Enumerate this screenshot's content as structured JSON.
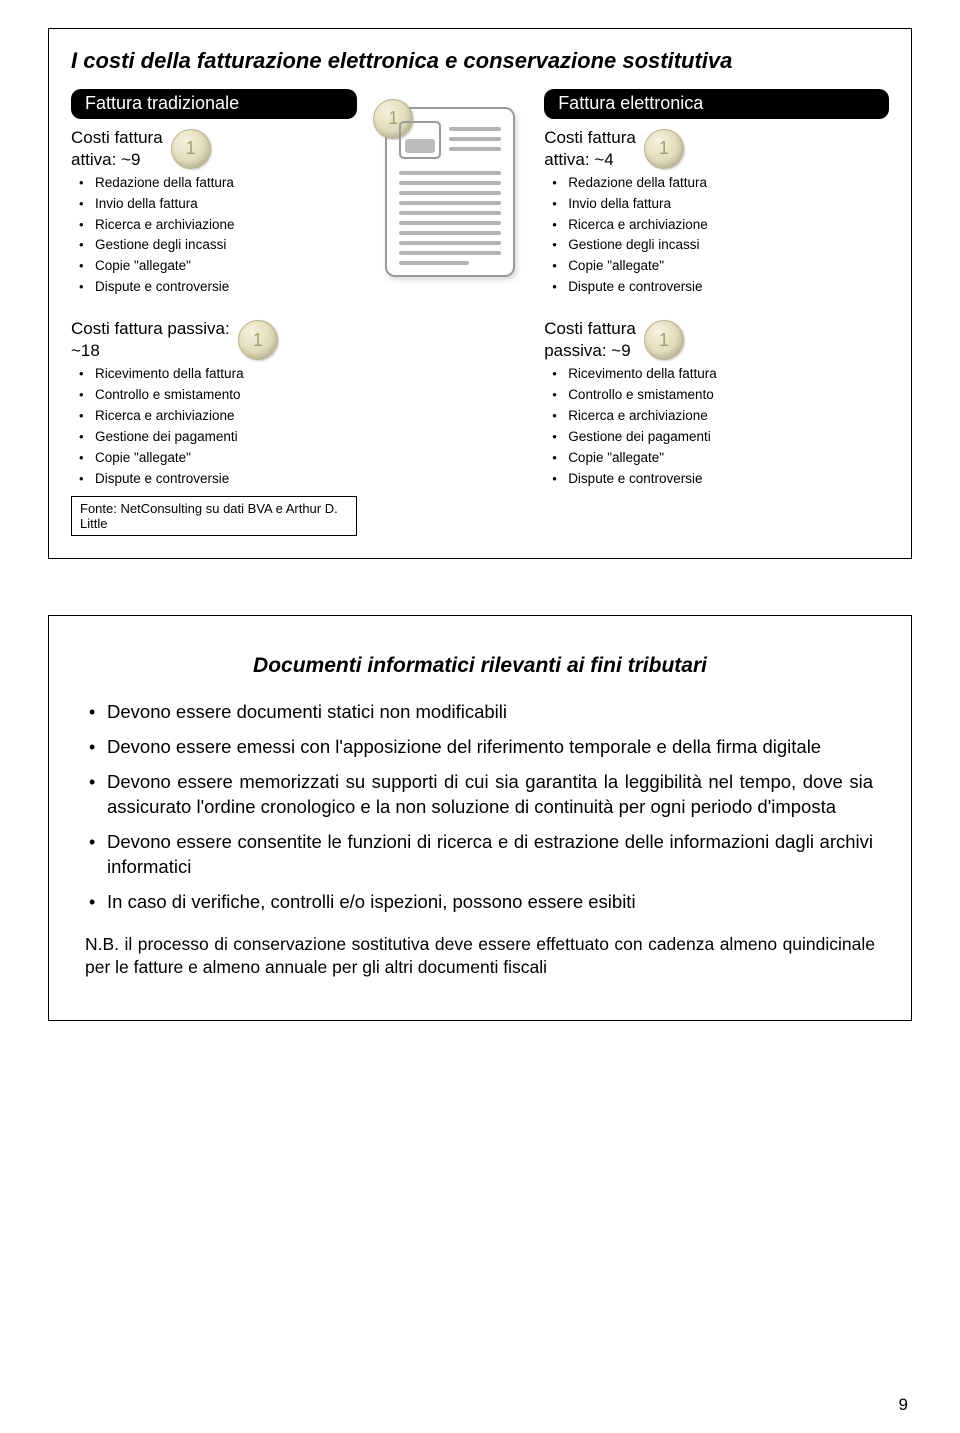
{
  "slide1": {
    "title": "I costi della fatturazione elettronica e conservazione sostitutiva",
    "col_left": {
      "pill": "Fattura tradizionale",
      "block_a": {
        "head": "Costi fattura\nattiva: ~9",
        "items": [
          "Redazione della fattura",
          "Invio della fattura",
          "Ricerca e archiviazione",
          "Gestione degli incassi",
          "Copie \"allegate\"",
          "Dispute e controversie"
        ]
      },
      "block_b": {
        "head": "Costi fattura passiva:\n~18",
        "items": [
          "Ricevimento della fattura",
          "Controllo e smistamento",
          "Ricerca e archiviazione",
          "Gestione dei pagamenti",
          "Copie \"allegate\"",
          "Dispute e controversie"
        ]
      }
    },
    "col_right": {
      "pill": "Fattura elettronica",
      "block_a": {
        "head": "Costi fattura\nattiva: ~4",
        "items": [
          "Redazione della fattura",
          "Invio della fattura",
          "Ricerca e archiviazione",
          "Gestione degli incassi",
          "Copie \"allegate\"",
          "Dispute e controversie"
        ]
      },
      "block_b": {
        "head": "Costi fattura\npassiva: ~9",
        "items": [
          "Ricevimento della fattura",
          "Controllo e smistamento",
          "Ricerca e archiviazione",
          "Gestione dei pagamenti",
          "Copie \"allegate\"",
          "Dispute e controversie"
        ]
      }
    },
    "source": "Fonte: NetConsulting su dati BVA e Arthur D. Little"
  },
  "slide2": {
    "sub_title": "Documenti informatici rilevanti ai fini tributari",
    "bullets": [
      "Devono essere documenti statici non modificabili",
      "Devono essere emessi con l'apposizione del riferimento temporale e della firma digitale",
      "Devono essere memorizzati su supporti di cui sia garantita la leggibilità nel tempo, dove sia assicurato l'ordine cronologico e la non soluzione di continuità per ogni periodo d'imposta",
      "Devono essere consentite le funzioni di ricerca e di estrazione delle informazioni dagli archivi informatici",
      "In caso di verifiche, controlli e/o ispezioni, possono essere esibiti"
    ],
    "nb": "N.B. il processo di conservazione sostitutiva deve essere effettuato con cadenza almeno quindicinale per le fatture e almeno annuale per gli altri documenti fiscali"
  },
  "page_number": "9"
}
